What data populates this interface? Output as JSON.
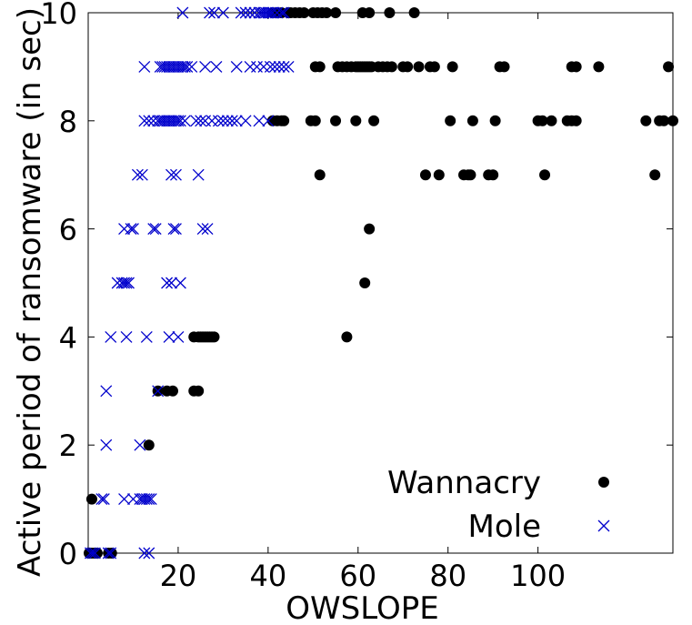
{
  "chart_data": {
    "type": "scatter",
    "xlabel": "OWSLOPE",
    "ylabel": "Active period of ransomware (in sec)",
    "xlim": [
      0,
      130
    ],
    "ylim": [
      0,
      10
    ],
    "x_ticks": [
      20,
      40,
      60,
      80,
      100
    ],
    "y_ticks": [
      0,
      2,
      4,
      6,
      8,
      10
    ],
    "grid": false,
    "legend_position": "bottom-right",
    "series": [
      {
        "name": "Wannacry",
        "marker": "filled-circle",
        "color": "#000000",
        "points": [
          [
            0.2,
            0
          ],
          [
            0.8,
            0
          ],
          [
            1.4,
            0
          ],
          [
            2,
            0
          ],
          [
            4.5,
            0
          ],
          [
            5.2,
            0
          ],
          [
            0.8,
            1
          ],
          [
            13.5,
            2
          ],
          [
            15.5,
            3
          ],
          [
            17.5,
            3
          ],
          [
            18.8,
            3
          ],
          [
            23.5,
            3
          ],
          [
            24.5,
            3
          ],
          [
            23.5,
            4
          ],
          [
            24.5,
            4
          ],
          [
            25,
            4
          ],
          [
            25.5,
            4
          ],
          [
            26,
            4
          ],
          [
            26.5,
            4
          ],
          [
            27,
            4
          ],
          [
            27.5,
            4
          ],
          [
            28,
            4
          ],
          [
            57.5,
            4
          ],
          [
            61.5,
            5
          ],
          [
            62.5,
            6
          ],
          [
            51.5,
            7
          ],
          [
            75,
            7
          ],
          [
            78,
            7
          ],
          [
            83.5,
            7
          ],
          [
            84.5,
            7
          ],
          [
            85,
            7
          ],
          [
            89,
            7
          ],
          [
            90,
            7
          ],
          [
            101.5,
            7
          ],
          [
            126,
            7
          ],
          [
            41,
            8
          ],
          [
            42,
            8
          ],
          [
            43,
            8
          ],
          [
            43.5,
            8
          ],
          [
            49.5,
            8
          ],
          [
            50.5,
            8
          ],
          [
            55,
            8
          ],
          [
            59.5,
            8
          ],
          [
            63.5,
            8
          ],
          [
            80.5,
            8
          ],
          [
            85.5,
            8
          ],
          [
            90.5,
            8
          ],
          [
            100,
            8
          ],
          [
            101,
            8
          ],
          [
            103,
            8
          ],
          [
            106.5,
            8
          ],
          [
            107.5,
            8
          ],
          [
            108.5,
            8
          ],
          [
            124,
            8
          ],
          [
            127,
            8
          ],
          [
            128,
            8
          ],
          [
            130,
            8
          ],
          [
            50.5,
            9
          ],
          [
            51.5,
            9
          ],
          [
            55.5,
            9
          ],
          [
            56.5,
            9
          ],
          [
            57.5,
            9
          ],
          [
            58.5,
            9
          ],
          [
            59.5,
            9
          ],
          [
            60,
            9
          ],
          [
            60.5,
            9
          ],
          [
            61,
            9
          ],
          [
            61.5,
            9
          ],
          [
            62,
            9
          ],
          [
            62.5,
            9
          ],
          [
            63,
            9
          ],
          [
            64.5,
            9
          ],
          [
            65.5,
            9
          ],
          [
            66.5,
            9
          ],
          [
            67.5,
            9
          ],
          [
            70,
            9
          ],
          [
            71,
            9
          ],
          [
            73.5,
            9
          ],
          [
            76,
            9
          ],
          [
            77,
            9
          ],
          [
            81,
            9
          ],
          [
            91.5,
            9
          ],
          [
            92.5,
            9
          ],
          [
            107.5,
            9
          ],
          [
            108.5,
            9
          ],
          [
            113.5,
            9
          ],
          [
            129,
            9
          ],
          [
            41,
            10
          ],
          [
            42,
            10
          ],
          [
            43,
            10
          ],
          [
            44.5,
            10
          ],
          [
            45,
            10
          ],
          [
            46,
            10
          ],
          [
            47,
            10
          ],
          [
            48,
            10
          ],
          [
            50,
            10
          ],
          [
            51,
            10
          ],
          [
            52,
            10
          ],
          [
            53,
            10
          ],
          [
            55,
            10
          ],
          [
            61,
            10
          ],
          [
            62.5,
            10
          ],
          [
            67,
            10
          ],
          [
            72.5,
            10
          ]
        ]
      },
      {
        "name": "Mole",
        "marker": "x",
        "color": "#0000cc",
        "points": [
          [
            0.5,
            0
          ],
          [
            1,
            0
          ],
          [
            1.5,
            0
          ],
          [
            4.5,
            0
          ],
          [
            5,
            0
          ],
          [
            12.5,
            0
          ],
          [
            13.5,
            0
          ],
          [
            3,
            1
          ],
          [
            3.5,
            1
          ],
          [
            8,
            1
          ],
          [
            10,
            1
          ],
          [
            11.5,
            1
          ],
          [
            12,
            1
          ],
          [
            12.5,
            1
          ],
          [
            13,
            1
          ],
          [
            13.5,
            1
          ],
          [
            14,
            1
          ],
          [
            4,
            2
          ],
          [
            11.5,
            2
          ],
          [
            4,
            3
          ],
          [
            15.5,
            3
          ],
          [
            5,
            4
          ],
          [
            8.5,
            4
          ],
          [
            13,
            4
          ],
          [
            18,
            4
          ],
          [
            20,
            4
          ],
          [
            6.5,
            5
          ],
          [
            7.5,
            5
          ],
          [
            8,
            5
          ],
          [
            8.5,
            5
          ],
          [
            9,
            5
          ],
          [
            17.5,
            5
          ],
          [
            18.5,
            5
          ],
          [
            20.5,
            5
          ],
          [
            8,
            6
          ],
          [
            9.5,
            6
          ],
          [
            10,
            6
          ],
          [
            14.5,
            6
          ],
          [
            15,
            6
          ],
          [
            19,
            6
          ],
          [
            19.5,
            6
          ],
          [
            25.5,
            6
          ],
          [
            26.5,
            6
          ],
          [
            11,
            7
          ],
          [
            12,
            7
          ],
          [
            18.5,
            7
          ],
          [
            19.5,
            7
          ],
          [
            24.5,
            7
          ],
          [
            12.5,
            8
          ],
          [
            13.5,
            8
          ],
          [
            14.5,
            8
          ],
          [
            15.5,
            8
          ],
          [
            16,
            8
          ],
          [
            16.5,
            8
          ],
          [
            17,
            8
          ],
          [
            17.5,
            8
          ],
          [
            18,
            8
          ],
          [
            18.5,
            8
          ],
          [
            19,
            8
          ],
          [
            19.5,
            8
          ],
          [
            20,
            8
          ],
          [
            20.5,
            8
          ],
          [
            21.5,
            8
          ],
          [
            24,
            8
          ],
          [
            25,
            8
          ],
          [
            26,
            8
          ],
          [
            27.5,
            8
          ],
          [
            29,
            8
          ],
          [
            30,
            8
          ],
          [
            31,
            8
          ],
          [
            32,
            8
          ],
          [
            33,
            8
          ],
          [
            35,
            8
          ],
          [
            38,
            8
          ],
          [
            40,
            8
          ],
          [
            12.5,
            9
          ],
          [
            16,
            9
          ],
          [
            16.5,
            9
          ],
          [
            17,
            9
          ],
          [
            17.5,
            9
          ],
          [
            18,
            9
          ],
          [
            18.5,
            9
          ],
          [
            19,
            9
          ],
          [
            19.5,
            9
          ],
          [
            20,
            9
          ],
          [
            20.5,
            9
          ],
          [
            21,
            9
          ],
          [
            21.5,
            9
          ],
          [
            22,
            9
          ],
          [
            23,
            9
          ],
          [
            26,
            9
          ],
          [
            28.5,
            9
          ],
          [
            33,
            9
          ],
          [
            36,
            9
          ],
          [
            37.5,
            9
          ],
          [
            39,
            9
          ],
          [
            40.5,
            9
          ],
          [
            41.5,
            9
          ],
          [
            42.5,
            9
          ],
          [
            43.5,
            9
          ],
          [
            44.5,
            9
          ],
          [
            21,
            10
          ],
          [
            27,
            10
          ],
          [
            28,
            10
          ],
          [
            30,
            10
          ],
          [
            34,
            10
          ],
          [
            35,
            10
          ],
          [
            36,
            10
          ],
          [
            37,
            10
          ],
          [
            38,
            10
          ],
          [
            38.5,
            10
          ],
          [
            39,
            10
          ],
          [
            39.5,
            10
          ],
          [
            40,
            10
          ],
          [
            40.5,
            10
          ],
          [
            41,
            10
          ],
          [
            42,
            10
          ],
          [
            43,
            10
          ],
          [
            43.5,
            10
          ]
        ]
      }
    ]
  }
}
